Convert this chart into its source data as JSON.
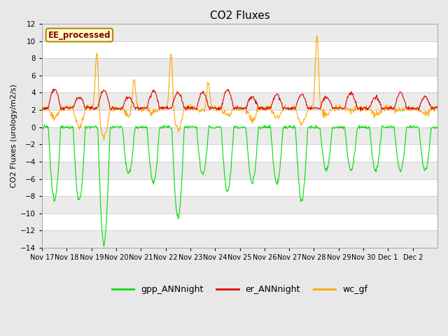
{
  "title": "CO2 Fluxes",
  "ylabel": "CO2 Fluxes (urology/m2/s)",
  "ylim": [
    -14,
    12
  ],
  "yticks": [
    -14,
    -12,
    -10,
    -8,
    -6,
    -4,
    -2,
    0,
    2,
    4,
    6,
    8,
    10,
    12
  ],
  "annotation_text": "EE_processed",
  "annotation_color": "#8B0000",
  "annotation_bg": "#FFFFCC",
  "annotation_border": "#B8860B",
  "colors": {
    "gpp": "#00DD00",
    "er": "#DD0000",
    "wc": "#FFA500"
  },
  "legend_labels": [
    "gpp_ANNnight",
    "er_ANNnight",
    "wc_gf"
  ],
  "x_tick_labels": [
    "Nov 17",
    "Nov 18",
    "Nov 19",
    "Nov 20",
    "Nov 21",
    "Nov 22",
    "Nov 23",
    "Nov 24",
    "Nov 25",
    "Nov 26",
    "Nov 27",
    "Nov 28",
    "Nov 29",
    "Nov 30",
    "Dec 1",
    "Dec 2"
  ],
  "bg_color": "#E8E8E8",
  "plot_bg": "#FFFFFF",
  "linewidth": 0.8
}
